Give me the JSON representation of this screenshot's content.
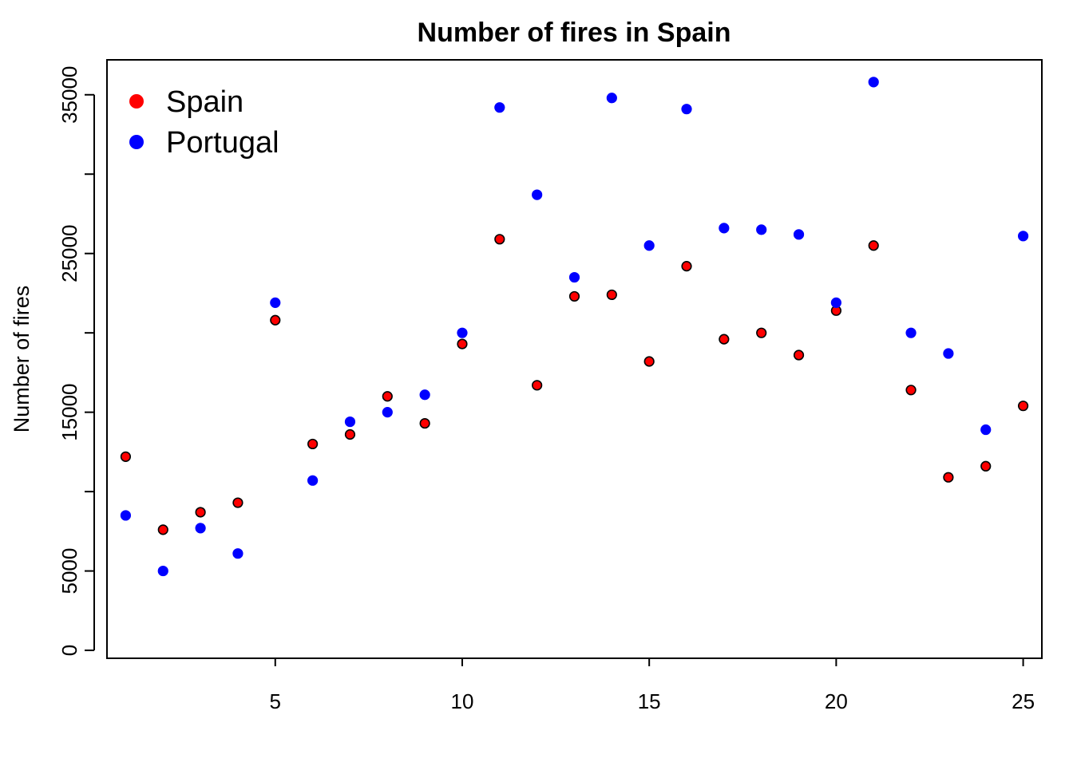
{
  "chart_data": {
    "type": "scatter",
    "title": "Number of fires in Spain",
    "xlabel": "",
    "ylabel": "Number of fires",
    "xlim": [
      0.5,
      25.5
    ],
    "ylim": [
      -500,
      37200
    ],
    "x_ticks": [
      5,
      10,
      15,
      20,
      25
    ],
    "y_ticks": [
      0,
      5000,
      15000,
      25000,
      35000
    ],
    "y_minor_ticks": [
      10000,
      20000,
      30000
    ],
    "grid": false,
    "legend_position": "top-left",
    "series": [
      {
        "name": "Spain",
        "color": "#ff0000",
        "outline": "#000000",
        "x": [
          1,
          2,
          3,
          4,
          5,
          6,
          7,
          8,
          9,
          10,
          11,
          12,
          13,
          14,
          15,
          16,
          17,
          18,
          19,
          20,
          21,
          22,
          23,
          24,
          25
        ],
        "y": [
          12200,
          7600,
          8700,
          9300,
          20800,
          13000,
          13600,
          16000,
          14300,
          19300,
          25900,
          16700,
          22300,
          22400,
          18200,
          24200,
          19600,
          20000,
          18600,
          21400,
          25500,
          16400,
          10900,
          11600,
          15400
        ]
      },
      {
        "name": "Portugal",
        "color": "#0000ff",
        "outline": "#0000ff",
        "x": [
          1,
          2,
          3,
          4,
          5,
          6,
          7,
          8,
          9,
          10,
          11,
          12,
          13,
          14,
          15,
          16,
          17,
          18,
          19,
          20,
          21,
          22,
          23,
          24,
          25
        ],
        "y": [
          8500,
          5000,
          7700,
          6100,
          21900,
          10700,
          14400,
          15000,
          16100,
          20000,
          34200,
          28700,
          23500,
          34800,
          25500,
          34100,
          26600,
          26500,
          26200,
          21900,
          35800,
          20000,
          18700,
          13900,
          26100
        ]
      }
    ]
  }
}
